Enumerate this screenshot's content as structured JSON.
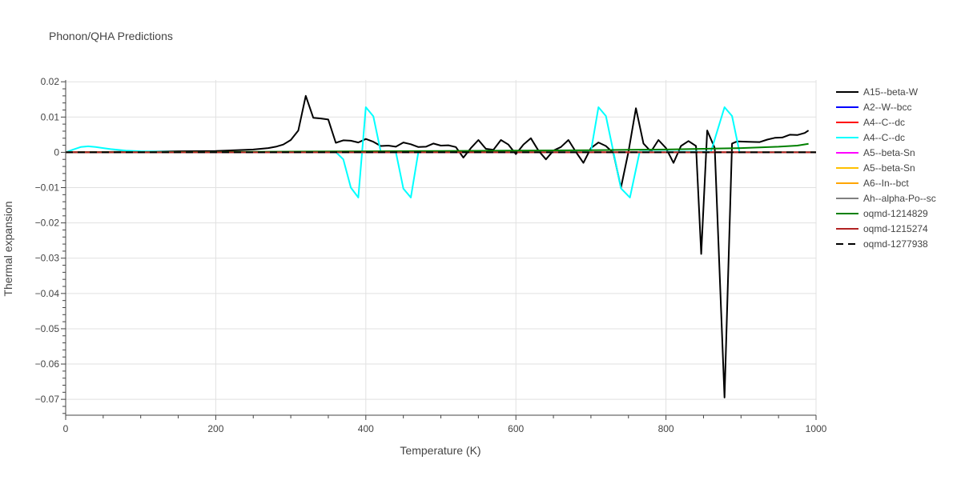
{
  "chart_data": {
    "type": "line",
    "title": "Phonon/QHA Predictions",
    "xlabel": "Temperature (K)",
    "ylabel": "Thermal expansion",
    "xlim": [
      0,
      1000
    ],
    "ylim": [
      -0.0745,
      0.0205
    ],
    "x_ticks": [
      0,
      200,
      400,
      600,
      800,
      1000
    ],
    "x_tick_labels": [
      "0",
      "200",
      "400",
      "600",
      "800",
      "1000"
    ],
    "y_ticks": [
      0.02,
      0.01,
      0,
      -0.01,
      -0.02,
      -0.03,
      -0.04,
      -0.05,
      -0.06,
      -0.07
    ],
    "y_tick_labels": [
      "0.02",
      "0.01",
      "0",
      "−0.01",
      "−0.02",
      "−0.03",
      "−0.04",
      "−0.05",
      "−0.06",
      "−0.07"
    ],
    "grid": true,
    "legend_position": "right",
    "series": [
      {
        "name": "A15--beta-W",
        "color": "#000000",
        "dash": "solid",
        "points": [
          [
            0,
            0
          ],
          [
            50,
            0.0001
          ],
          [
            100,
            0.0002
          ],
          [
            150,
            0.0003
          ],
          [
            200,
            0.0004
          ],
          [
            250,
            0.0008
          ],
          [
            270,
            0.0012
          ],
          [
            280,
            0.0016
          ],
          [
            290,
            0.0022
          ],
          [
            300,
            0.0035
          ],
          [
            310,
            0.0062
          ],
          [
            320,
            0.016
          ],
          [
            330,
            0.0098
          ],
          [
            340,
            0.0096
          ],
          [
            350,
            0.0093
          ],
          [
            360,
            0.0027
          ],
          [
            370,
            0.0034
          ],
          [
            380,
            0.0033
          ],
          [
            390,
            0.0028
          ],
          [
            400,
            0.0038
          ],
          [
            410,
            0.003
          ],
          [
            420,
            0.0018
          ],
          [
            430,
            0.0019
          ],
          [
            440,
            0.0016
          ],
          [
            450,
            0.0028
          ],
          [
            460,
            0.0023
          ],
          [
            470,
            0.0015
          ],
          [
            480,
            0.0016
          ],
          [
            490,
            0.0025
          ],
          [
            500,
            0.0019
          ],
          [
            510,
            0.002
          ],
          [
            520,
            0.0015
          ],
          [
            530,
            -0.0015
          ],
          [
            540,
            0.0012
          ],
          [
            550,
            0.0035
          ],
          [
            560,
            0.001
          ],
          [
            570,
            0.0007
          ],
          [
            580,
            0.0035
          ],
          [
            590,
            0.0022
          ],
          [
            600,
            -0.0005
          ],
          [
            610,
            0.0022
          ],
          [
            620,
            0.004
          ],
          [
            630,
            0.0005
          ],
          [
            640,
            -0.002
          ],
          [
            650,
            0.0005
          ],
          [
            660,
            0.0015
          ],
          [
            670,
            0.0035
          ],
          [
            680,
            0.0001
          ],
          [
            690,
            -0.003
          ],
          [
            700,
            0.0012
          ],
          [
            710,
            0.0028
          ],
          [
            720,
            0.0018
          ],
          [
            730,
            -0.0002
          ],
          [
            740,
            -0.01
          ],
          [
            750,
            0.0002
          ],
          [
            760,
            0.0125
          ],
          [
            770,
            0.0025
          ],
          [
            780,
            0.0002
          ],
          [
            790,
            0.0035
          ],
          [
            800,
            0.0012
          ],
          [
            810,
            -0.003
          ],
          [
            820,
            0.0018
          ],
          [
            830,
            0.0032
          ],
          [
            840,
            0.0018
          ],
          [
            847,
            -0.0288
          ],
          [
            855,
            0.0062
          ],
          [
            865,
            0.0012
          ],
          [
            878,
            -0.0695
          ],
          [
            888,
            0.0025
          ],
          [
            895,
            0.0031
          ],
          [
            910,
            0.003
          ],
          [
            925,
            0.0029
          ],
          [
            935,
            0.0036
          ],
          [
            945,
            0.0041
          ],
          [
            955,
            0.0042
          ],
          [
            965,
            0.005
          ],
          [
            975,
            0.0049
          ],
          [
            985,
            0.0055
          ],
          [
            990,
            0.0062
          ]
        ]
      },
      {
        "name": "A2--W--bcc",
        "color": "#0000ff",
        "dash": "solid",
        "points": [
          [
            0,
            0
          ],
          [
            1000,
            0
          ]
        ]
      },
      {
        "name": "A4--C--dc",
        "color": "#ff0000",
        "dash": "solid",
        "points": [
          [
            0,
            0
          ],
          [
            1000,
            0
          ]
        ]
      },
      {
        "name": "A4--C--dc",
        "color": "#00ffff",
        "dash": "solid",
        "points": [
          [
            0,
            0
          ],
          [
            10,
            0.0008
          ],
          [
            20,
            0.0015
          ],
          [
            30,
            0.0017
          ],
          [
            40,
            0.0015
          ],
          [
            60,
            0.0009
          ],
          [
            80,
            0.0005
          ],
          [
            100,
            0.0003
          ],
          [
            150,
            0.0001
          ],
          [
            200,
            0
          ],
          [
            300,
            0
          ],
          [
            360,
            0.0001
          ],
          [
            370,
            -0.002
          ],
          [
            380,
            -0.01
          ],
          [
            390,
            -0.0128
          ],
          [
            400,
            0.0128
          ],
          [
            410,
            0.0102
          ],
          [
            420,
            0.0001
          ],
          [
            440,
            0.0001
          ],
          [
            450,
            -0.0103
          ],
          [
            460,
            -0.0128
          ],
          [
            470,
            0.0001
          ],
          [
            500,
            0.0002
          ],
          [
            600,
            0.0002
          ],
          [
            700,
            0.0003
          ],
          [
            710,
            0.0128
          ],
          [
            720,
            0.0103
          ],
          [
            730,
            0.0001
          ],
          [
            740,
            -0.0102
          ],
          [
            752,
            -0.0128
          ],
          [
            765,
            0.0002
          ],
          [
            800,
            0.0002
          ],
          [
            860,
            0.0002
          ],
          [
            878,
            0.0128
          ],
          [
            888,
            0.0103
          ],
          [
            898,
            0.0001
          ],
          [
            1000,
            0.0001
          ]
        ]
      },
      {
        "name": "A5--beta-Sn",
        "color": "#ff00ff",
        "dash": "solid",
        "points": [
          [
            0,
            0
          ],
          [
            1000,
            0
          ]
        ]
      },
      {
        "name": "A5--beta-Sn",
        "color": "#ffc000",
        "dash": "solid",
        "points": [
          [
            0,
            0
          ],
          [
            1000,
            0
          ]
        ]
      },
      {
        "name": "A6--In--bct",
        "color": "#ffa500",
        "dash": "solid",
        "points": [
          [
            0,
            0
          ],
          [
            1000,
            0
          ]
        ]
      },
      {
        "name": "Ah--alpha-Po--sc",
        "color": "#808080",
        "dash": "solid",
        "points": [
          [
            0,
            0
          ],
          [
            1000,
            0
          ]
        ]
      },
      {
        "name": "oqmd-1214829",
        "color": "#008000",
        "dash": "solid",
        "points": [
          [
            0,
            0
          ],
          [
            100,
            5e-05
          ],
          [
            200,
            0.0001
          ],
          [
            300,
            0.0002
          ],
          [
            400,
            0.0003
          ],
          [
            500,
            0.0004
          ],
          [
            600,
            0.0005
          ],
          [
            700,
            0.0006
          ],
          [
            750,
            0.0007
          ],
          [
            800,
            0.0008
          ],
          [
            850,
            0.001
          ],
          [
            900,
            0.0012
          ],
          [
            950,
            0.0016
          ],
          [
            975,
            0.0019
          ],
          [
            990,
            0.0024
          ]
        ]
      },
      {
        "name": "oqmd-1215274",
        "color": "#b22222",
        "dash": "solid",
        "points": [
          [
            0,
            0
          ],
          [
            1000,
            0
          ]
        ]
      },
      {
        "name": "oqmd-1277938",
        "color": "#000000",
        "dash": "dash",
        "points": [
          [
            0,
            0
          ],
          [
            1000,
            0
          ]
        ]
      }
    ]
  }
}
